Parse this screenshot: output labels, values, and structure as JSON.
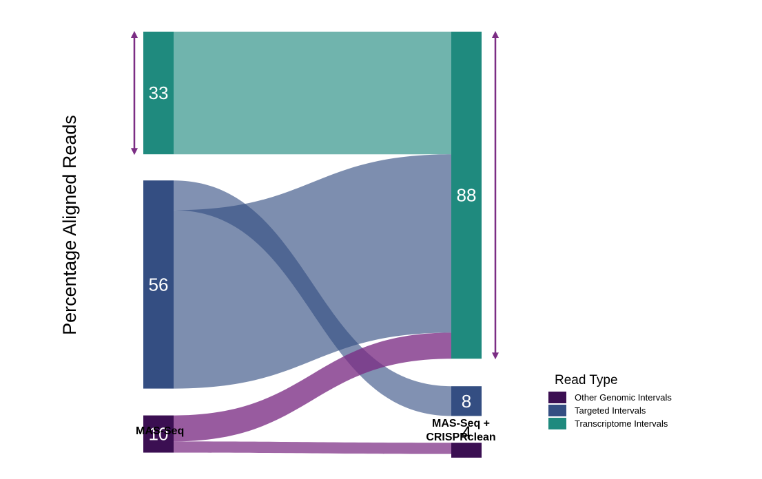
{
  "chart_data": {
    "type": "sankey",
    "ylabel": "Percentage Aligned Reads",
    "stages": [
      "MAS-Seq",
      "MAS-Seq +\nCRISPRclean"
    ],
    "categories": [
      {
        "key": "other",
        "name": "Other Genomic Intervals",
        "color": "#3b0f52"
      },
      {
        "key": "targeted",
        "name": "Targeted Intervals",
        "color": "#344e82"
      },
      {
        "key": "transcriptome",
        "name": "Transcriptome Intervals",
        "color": "#1f8a7e"
      }
    ],
    "left_nodes": [
      {
        "key": "transcriptome",
        "value": 33,
        "label": "33"
      },
      {
        "key": "targeted",
        "value": 56,
        "label": "56"
      },
      {
        "key": "other",
        "value": 10,
        "label": "10"
      }
    ],
    "right_nodes": [
      {
        "key": "transcriptome",
        "value": 88,
        "label": "88"
      },
      {
        "key": "targeted",
        "value": 8,
        "label": "8"
      },
      {
        "key": "other",
        "value": 4,
        "label": "4"
      }
    ],
    "flows": [
      {
        "from": "transcriptome",
        "to": "transcriptome",
        "value": 33
      },
      {
        "from": "targeted",
        "to": "targeted",
        "value": 8
      },
      {
        "from": "targeted",
        "to": "transcriptome",
        "value": 48
      },
      {
        "from": "other",
        "to": "transcriptome",
        "value": 7
      },
      {
        "from": "other",
        "to": "other",
        "value": 3
      }
    ],
    "legend": {
      "title": "Read Type",
      "position": "bottom-right"
    },
    "arrows": [
      {
        "side": "left",
        "spans": "transcriptome"
      },
      {
        "side": "right",
        "spans": "transcriptome"
      }
    ],
    "arrow_color": "#7b2d84"
  }
}
